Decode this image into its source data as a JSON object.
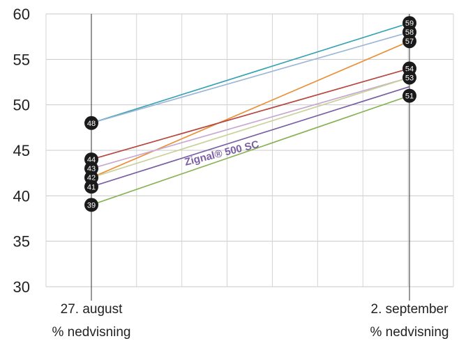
{
  "chart_data": {
    "type": "line",
    "x": [
      "27. august",
      "2. september"
    ],
    "x_sublabels": [
      "% nedvisning",
      "% nedvisning"
    ],
    "ylim": [
      30,
      60
    ],
    "yticks": [
      30,
      35,
      40,
      45,
      50,
      55,
      60
    ],
    "grid": true,
    "series": [
      {
        "values": [
          48,
          59
        ],
        "color": "#3aa3b3"
      },
      {
        "values": [
          48,
          58
        ],
        "color": "#9db7d6"
      },
      {
        "values": [
          42,
          57
        ],
        "color": "#e8923a"
      },
      {
        "values": [
          44,
          54
        ],
        "color": "#b5473f"
      },
      {
        "values": [
          43,
          53
        ],
        "color": "#c7a9cf"
      },
      {
        "values": [
          42,
          53
        ],
        "color": "#c9d29a"
      },
      {
        "values": [
          41,
          52
        ],
        "color": "#7a5fa5"
      },
      {
        "values": [
          39,
          51
        ],
        "color": "#8ab356"
      }
    ],
    "marker_labels": [
      {
        "x_index": 0,
        "value": 48,
        "label": "48"
      },
      {
        "x_index": 0,
        "value": 44,
        "label": "44"
      },
      {
        "x_index": 0,
        "value": 43,
        "label": "43"
      },
      {
        "x_index": 0,
        "value": 42,
        "label": "42"
      },
      {
        "x_index": 0,
        "value": 41,
        "label": "41"
      },
      {
        "x_index": 0,
        "value": 39,
        "label": "39"
      },
      {
        "x_index": 1,
        "value": 59,
        "label": "59"
      },
      {
        "x_index": 1,
        "value": 58,
        "label": "58"
      },
      {
        "x_index": 1,
        "value": 57,
        "label": "57"
      },
      {
        "x_index": 1,
        "value": 54,
        "label": "54"
      },
      {
        "x_index": 1,
        "value": 53,
        "label": "53"
      },
      {
        "x_index": 1,
        "value": 51,
        "label": "51"
      }
    ],
    "annotation": {
      "text": "Zignal® 500 SC",
      "color": "#7a5fa5"
    }
  }
}
